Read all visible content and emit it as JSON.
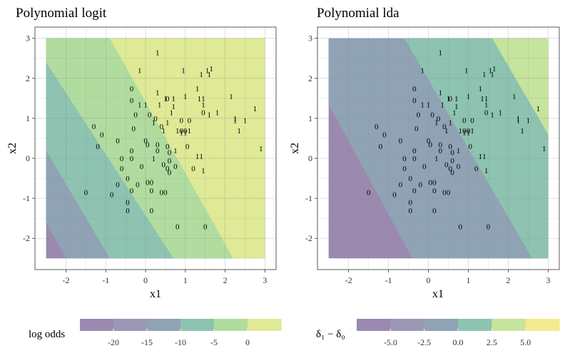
{
  "chart_data": [
    {
      "type": "heatmap",
      "title": "Polynomial logit",
      "xlabel": "x1",
      "ylabel": "x2",
      "xlim": [
        -2.5,
        3.0
      ],
      "ylim": [
        -2.5,
        3.0
      ],
      "xticks": [
        -2,
        -1,
        0,
        1,
        2,
        3
      ],
      "yticks": [
        -2,
        -1,
        0,
        1,
        2,
        3
      ],
      "xtick_labels": [
        "-2",
        "-1",
        "0",
        "1",
        "2",
        "3"
      ],
      "ytick_labels": [
        "-2",
        "-1",
        "0",
        "1",
        "2",
        "3"
      ],
      "grid": true,
      "region_boundaries": [
        {
          "level": 1,
          "x": [
            -2.5,
            -2.0
          ],
          "y": [
            -1.6,
            -2.5
          ]
        },
        {
          "level": 2,
          "x": [
            -2.5,
            -0.9
          ],
          "y": [
            0.2,
            -2.5
          ]
        },
        {
          "level": 3,
          "x": [
            -2.5,
            0.7
          ],
          "y": [
            2.4,
            -2.5
          ]
        },
        {
          "level": 4,
          "x": [
            -0.9,
            2.2
          ],
          "y": [
            3.0,
            -2.5
          ]
        }
      ],
      "region_colors": [
        "#9b89b0",
        "#8fa3b5",
        "#8dc3b0",
        "#b0dc9f",
        "#dfe996"
      ],
      "legend": {
        "title": "log odds",
        "tick_labels": [
          "-20",
          "-15",
          "-10",
          "-5",
          "0"
        ],
        "tick_values": [
          -20,
          -15,
          -10,
          -5,
          0
        ],
        "range": [
          -25,
          5
        ],
        "colors": [
          "#9b89b0",
          "#9a98b4",
          "#8fa3b5",
          "#8dc3b0",
          "#b0dc9f",
          "#dfe996"
        ],
        "position": "bottom"
      },
      "points": [
        {
          "x": 0.3,
          "y": 2.65,
          "label": "1"
        },
        {
          "x": -0.15,
          "y": 2.2,
          "label": "1"
        },
        {
          "x": 0.95,
          "y": 2.2,
          "label": "1"
        },
        {
          "x": 1.4,
          "y": 2.1,
          "label": "1"
        },
        {
          "x": 1.55,
          "y": 2.2,
          "label": "1"
        },
        {
          "x": 1.6,
          "y": 2.1,
          "label": "1"
        },
        {
          "x": 1.65,
          "y": 2.25,
          "label": "1"
        },
        {
          "x": -0.35,
          "y": 1.75,
          "label": "0"
        },
        {
          "x": -0.35,
          "y": 1.45,
          "label": "0"
        },
        {
          "x": -0.15,
          "y": 1.35,
          "label": "1"
        },
        {
          "x": 0.0,
          "y": 1.35,
          "label": "1"
        },
        {
          "x": 0.3,
          "y": 1.65,
          "label": "1"
        },
        {
          "x": 0.5,
          "y": 1.5,
          "label": "1"
        },
        {
          "x": 0.55,
          "y": 1.5,
          "label": "0"
        },
        {
          "x": 0.7,
          "y": 1.5,
          "label": "1"
        },
        {
          "x": 0.35,
          "y": 1.35,
          "label": "1"
        },
        {
          "x": 0.7,
          "y": 1.3,
          "label": "1"
        },
        {
          "x": 1.0,
          "y": 1.55,
          "label": "1"
        },
        {
          "x": 1.35,
          "y": 1.5,
          "label": "1"
        },
        {
          "x": 1.45,
          "y": 1.5,
          "label": "1"
        },
        {
          "x": 1.3,
          "y": 1.75,
          "label": "1"
        },
        {
          "x": 1.45,
          "y": 1.35,
          "label": "1"
        },
        {
          "x": 2.15,
          "y": 1.55,
          "label": "1"
        },
        {
          "x": 0.1,
          "y": 1.1,
          "label": "0"
        },
        {
          "x": 0.65,
          "y": 1.15,
          "label": "1"
        },
        {
          "x": -0.25,
          "y": 1.1,
          "label": "0"
        },
        {
          "x": 0.25,
          "y": 1.0,
          "label": "0"
        },
        {
          "x": 0.2,
          "y": 0.9,
          "label": "1"
        },
        {
          "x": 0.55,
          "y": 0.9,
          "label": "1"
        },
        {
          "x": 0.9,
          "y": 0.95,
          "label": "0"
        },
        {
          "x": 1.1,
          "y": 0.95,
          "label": "0"
        },
        {
          "x": 1.45,
          "y": 1.15,
          "label": "0"
        },
        {
          "x": 1.6,
          "y": 1.1,
          "label": "1"
        },
        {
          "x": 1.8,
          "y": 1.15,
          "label": "1"
        },
        {
          "x": 2.25,
          "y": 1.0,
          "label": "1"
        },
        {
          "x": 2.25,
          "y": 0.95,
          "label": "1"
        },
        {
          "x": 2.5,
          "y": 0.95,
          "label": "1"
        },
        {
          "x": 2.75,
          "y": 1.25,
          "label": "1"
        },
        {
          "x": -1.3,
          "y": 0.8,
          "label": "0"
        },
        {
          "x": -1.1,
          "y": 0.6,
          "label": "0"
        },
        {
          "x": -0.3,
          "y": 0.75,
          "label": "0"
        },
        {
          "x": 0.4,
          "y": 0.8,
          "label": "0"
        },
        {
          "x": 0.45,
          "y": 0.7,
          "label": "1"
        },
        {
          "x": 0.8,
          "y": 0.7,
          "label": "1"
        },
        {
          "x": 0.9,
          "y": 0.65,
          "label": "1"
        },
        {
          "x": 0.9,
          "y": 0.7,
          "label": "0"
        },
        {
          "x": 1.0,
          "y": 0.7,
          "label": "0"
        },
        {
          "x": 1.0,
          "y": 0.65,
          "label": "1"
        },
        {
          "x": 1.1,
          "y": 0.7,
          "label": "1"
        },
        {
          "x": 2.35,
          "y": 0.7,
          "label": "1"
        },
        {
          "x": -1.2,
          "y": 0.3,
          "label": "0"
        },
        {
          "x": -0.7,
          "y": 0.45,
          "label": "0"
        },
        {
          "x": 0.0,
          "y": 0.45,
          "label": "0"
        },
        {
          "x": 0.05,
          "y": 0.35,
          "label": "0"
        },
        {
          "x": 0.3,
          "y": 0.35,
          "label": "0"
        },
        {
          "x": 0.55,
          "y": 0.3,
          "label": "0"
        },
        {
          "x": 1.05,
          "y": 0.3,
          "label": "0"
        },
        {
          "x": 2.9,
          "y": 0.25,
          "label": "1"
        },
        {
          "x": -0.35,
          "y": 0.2,
          "label": "0"
        },
        {
          "x": 0.3,
          "y": 0.2,
          "label": "0"
        },
        {
          "x": 0.6,
          "y": 0.15,
          "label": "0"
        },
        {
          "x": 0.75,
          "y": 0.2,
          "label": "1"
        },
        {
          "x": 1.3,
          "y": 0.05,
          "label": "1"
        },
        {
          "x": 1.4,
          "y": 0.05,
          "label": "1"
        },
        {
          "x": -0.6,
          "y": 0.0,
          "label": "0"
        },
        {
          "x": -0.35,
          "y": 0.0,
          "label": "0"
        },
        {
          "x": 0.2,
          "y": 0.0,
          "label": "1"
        },
        {
          "x": 0.6,
          "y": -0.05,
          "label": "0"
        },
        {
          "x": -0.6,
          "y": -0.25,
          "label": "0"
        },
        {
          "x": -0.1,
          "y": -0.2,
          "label": "0"
        },
        {
          "x": 0.45,
          "y": -0.15,
          "label": "0"
        },
        {
          "x": 0.55,
          "y": -0.25,
          "label": "0"
        },
        {
          "x": 0.75,
          "y": -0.2,
          "label": "0"
        },
        {
          "x": 1.2,
          "y": -0.25,
          "label": "0"
        },
        {
          "x": 1.45,
          "y": -0.3,
          "label": "1"
        },
        {
          "x": 0.6,
          "y": -0.35,
          "label": "0"
        },
        {
          "x": -0.45,
          "y": -0.5,
          "label": "0"
        },
        {
          "x": -0.7,
          "y": -0.65,
          "label": "0"
        },
        {
          "x": -0.2,
          "y": -0.65,
          "label": "0"
        },
        {
          "x": 0.05,
          "y": -0.6,
          "label": "0"
        },
        {
          "x": 0.15,
          "y": -0.6,
          "label": "0"
        },
        {
          "x": -0.35,
          "y": -0.8,
          "label": "0"
        },
        {
          "x": 0.15,
          "y": -0.8,
          "label": "0"
        },
        {
          "x": 0.4,
          "y": -0.85,
          "label": "0"
        },
        {
          "x": 0.5,
          "y": -0.85,
          "label": "0"
        },
        {
          "x": -1.5,
          "y": -0.85,
          "label": "0"
        },
        {
          "x": -0.85,
          "y": -0.9,
          "label": "0"
        },
        {
          "x": -0.45,
          "y": -1.1,
          "label": "0"
        },
        {
          "x": -0.45,
          "y": -1.3,
          "label": "0"
        },
        {
          "x": 0.15,
          "y": -1.3,
          "label": "0"
        },
        {
          "x": 0.8,
          "y": -1.7,
          "label": "0"
        },
        {
          "x": 1.5,
          "y": -1.7,
          "label": "0"
        }
      ]
    },
    {
      "type": "heatmap",
      "title": "Polynomial lda",
      "xlabel": "x1",
      "ylabel": "x2",
      "xlim": [
        -2.5,
        3.0
      ],
      "ylim": [
        -2.5,
        3.0
      ],
      "xticks": [
        -2,
        -1,
        0,
        1,
        2,
        3
      ],
      "yticks": [
        -2,
        -1,
        0,
        1,
        2,
        3
      ],
      "xtick_labels": [
        "-2",
        "-1",
        "0",
        "1",
        "2",
        "3"
      ],
      "ytick_labels": [
        "-2",
        "-1",
        "0",
        "1",
        "2",
        "3"
      ],
      "grid": true,
      "region_boundaries": [
        {
          "level": 1,
          "x": [
            -2.5,
            -0.4
          ],
          "y": [
            1.35,
            -2.5
          ]
        },
        {
          "level": 2,
          "x": [
            -0.6,
            2.6
          ],
          "y": [
            3.0,
            -2.5
          ]
        },
        {
          "level": 3,
          "x": [
            1.6,
            3.0
          ],
          "y": [
            3.0,
            0.6
          ]
        },
        {
          "level": 4,
          "x": [
            2.95,
            3.0
          ],
          "y": [
            3.0,
            2.9
          ]
        }
      ],
      "region_colors": [
        "#9b89b0",
        "#8fa3b5",
        "#8dc3b0",
        "#c5e49c",
        "#f5ea8d"
      ],
      "legend": {
        "title": "δ₁ − δ₀",
        "tick_labels": [
          "-5.0",
          "-2.5",
          "0.0",
          "2.5",
          "5.0"
        ],
        "tick_values": [
          -5.0,
          -2.5,
          0.0,
          2.5,
          5.0
        ],
        "range": [
          -7.5,
          7.5
        ],
        "colors": [
          "#9b89b0",
          "#9a98b4",
          "#8fa3b5",
          "#8dc3b0",
          "#c5e49c",
          "#f5ea8d"
        ],
        "position": "bottom"
      }
    }
  ]
}
